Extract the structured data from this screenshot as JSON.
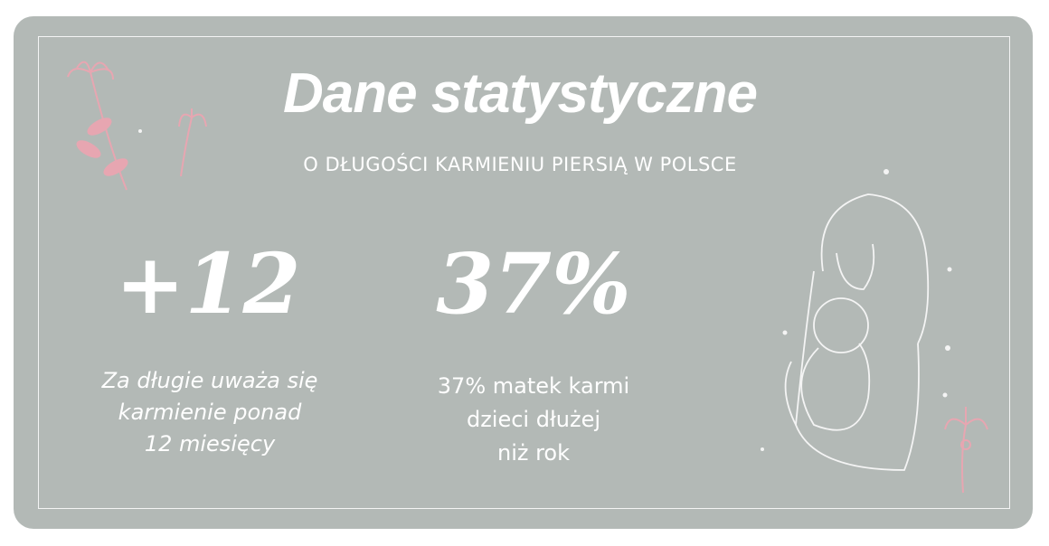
{
  "header": {
    "title": "Dane statystyczne",
    "subtitle": "O DŁUGOŚCI KARMIENIU PIERSIĄ W POLSCE"
  },
  "stats": [
    {
      "value": "+12",
      "caption": [
        "Za długie uważa się",
        "karmienie ponad",
        "12 miesięcy"
      ]
    },
    {
      "value": "37%",
      "caption": [
        "37% matek karmi",
        "dzieci dłużej",
        "niż rok"
      ]
    }
  ]
}
